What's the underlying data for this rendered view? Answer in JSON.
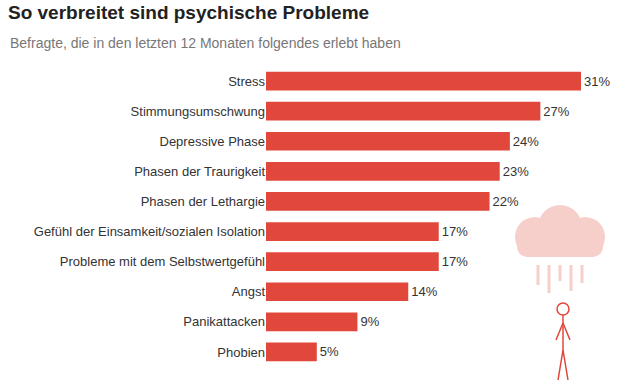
{
  "chart_data": {
    "type": "bar",
    "orientation": "horizontal",
    "title": "So verbreitet sind psychische Probleme",
    "subtitle": "Befragte, die in den letzten 12 Monaten folgendes erlebt haben",
    "categories": [
      "Stress",
      "Stimmungsumschwung",
      "Depressive Phase",
      "Phasen der Traurigkeit",
      "Phasen der Lethargie",
      "Gefühl der Einsamkeit/sozialen Isolation",
      "Probleme mit dem Selbstwertgefühl",
      "Angst",
      "Panikattacken",
      "Phobien"
    ],
    "values": [
      31,
      27,
      24,
      23,
      22,
      17,
      17,
      14,
      9,
      5
    ],
    "value_labels": [
      "31%",
      "27%",
      "24%",
      "23%",
      "22%",
      "17%",
      "17%",
      "14%",
      "9%",
      "5%"
    ],
    "color": "#e2473b",
    "xlim": [
      0,
      31
    ],
    "data_labels": true,
    "tick_labels": "y",
    "grid": false
  }
}
